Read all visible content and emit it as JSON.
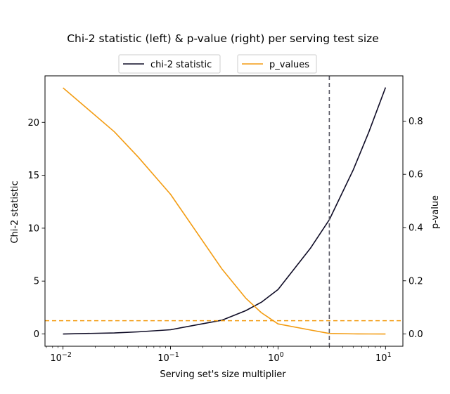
{
  "chart_data": {
    "type": "line",
    "title": "Chi-2 statistic (left) & p-value (right) per serving test size",
    "xlabel": "Serving set's size multiplier",
    "ylabel_left": "Chi-2 statistic",
    "ylabel_right": "p-value",
    "x_scale": "log",
    "xlim": [
      0.0068,
      14.5
    ],
    "ylim_left": [
      -1.16,
      24.4
    ],
    "ylim_right": [
      -0.046,
      0.97
    ],
    "x_ticks": [
      {
        "value": 0.01,
        "base": "10",
        "exp": "−2"
      },
      {
        "value": 0.1,
        "base": "10",
        "exp": "−1"
      },
      {
        "value": 1,
        "base": "10",
        "exp": "0"
      },
      {
        "value": 10,
        "base": "10",
        "exp": "1"
      }
    ],
    "y_ticks_left": [
      0,
      5,
      10,
      15,
      20
    ],
    "y_ticks_right": [
      0.0,
      0.2,
      0.4,
      0.6,
      0.8
    ],
    "grid": false,
    "legend_placement": "top-center",
    "series": [
      {
        "name": "chi-2 statistic",
        "axis": "left",
        "color": "#0f0c26",
        "x": [
          0.01,
          0.03,
          0.05,
          0.1,
          0.3,
          0.5,
          0.7,
          1,
          2,
          3,
          5,
          7,
          10
        ],
        "y": [
          0.0,
          0.1,
          0.2,
          0.4,
          1.3,
          2.2,
          3.0,
          4.2,
          8.1,
          10.8,
          15.5,
          19.1,
          23.3
        ]
      },
      {
        "name": "p_values",
        "axis": "right",
        "color": "#f39c12",
        "x": [
          0.01,
          0.03,
          0.05,
          0.1,
          0.3,
          0.5,
          0.7,
          1,
          2,
          3,
          5,
          7,
          10
        ],
        "y": [
          0.925,
          0.76,
          0.665,
          0.525,
          0.245,
          0.135,
          0.08,
          0.038,
          0.015,
          0.002,
          0.0005,
          0.0002,
          0.0
        ]
      }
    ],
    "reference_lines": [
      {
        "orientation": "vertical",
        "x": 3,
        "color": "#5a5a66",
        "style": "dashed"
      },
      {
        "orientation": "horizontal",
        "axis": "right",
        "y": 0.05,
        "color": "#f39c12",
        "style": "dashed"
      }
    ]
  }
}
